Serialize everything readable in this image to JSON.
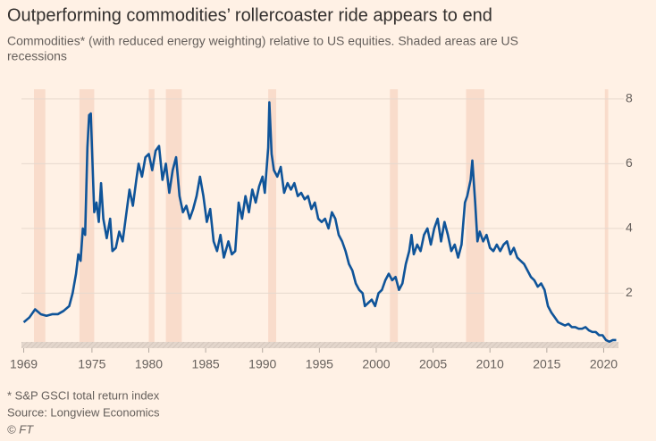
{
  "chart_data": {
    "type": "line",
    "title": "Outperforming commodities’ rollercoaster ride appears to end",
    "subtitle": [
      "Commodities* (with reduced energy weighting) relative to US equities. Shaded areas are US",
      "recessions"
    ],
    "footnotes": [
      "* S&P GSCI total return index",
      "Source: Longview Economics",
      "© FT"
    ],
    "x": [
      1969.0,
      1969.5,
      1970.0,
      1970.5,
      1971.0,
      1971.5,
      1972.0,
      1972.5,
      1973.0,
      1973.3,
      1973.6,
      1973.8,
      1974.0,
      1974.2,
      1974.4,
      1974.6,
      1974.75,
      1974.9,
      1975.0,
      1975.2,
      1975.4,
      1975.6,
      1975.8,
      1976.0,
      1976.3,
      1976.6,
      1976.8,
      1977.1,
      1977.4,
      1977.7,
      1978.0,
      1978.3,
      1978.6,
      1978.9,
      1979.1,
      1979.4,
      1979.7,
      1980.0,
      1980.3,
      1980.6,
      1980.9,
      1981.2,
      1981.5,
      1981.8,
      1982.1,
      1982.4,
      1982.7,
      1983.0,
      1983.3,
      1983.6,
      1983.9,
      1984.2,
      1984.5,
      1984.8,
      1985.1,
      1985.4,
      1985.7,
      1986.0,
      1986.3,
      1986.6,
      1987.0,
      1987.3,
      1987.6,
      1987.9,
      1988.2,
      1988.5,
      1988.8,
      1989.1,
      1989.4,
      1989.7,
      1990.0,
      1990.2,
      1990.5,
      1990.6,
      1990.8,
      1991.0,
      1991.3,
      1991.6,
      1991.9,
      1992.2,
      1992.5,
      1992.8,
      1993.1,
      1993.4,
      1993.7,
      1994.0,
      1994.3,
      1994.6,
      1994.9,
      1995.2,
      1995.5,
      1995.8,
      1996.1,
      1996.4,
      1996.7,
      1997.0,
      1997.3,
      1997.6,
      1997.9,
      1998.2,
      1998.5,
      1998.8,
      1999.0,
      1999.3,
      1999.6,
      1999.9,
      2000.2,
      2000.5,
      2000.8,
      2001.1,
      2001.4,
      2001.7,
      2002.0,
      2002.3,
      2002.6,
      2002.9,
      2003.1,
      2003.3,
      2003.6,
      2003.9,
      2004.2,
      2004.5,
      2004.8,
      2005.1,
      2005.4,
      2005.7,
      2006.0,
      2006.3,
      2006.6,
      2006.9,
      2007.2,
      2007.5,
      2007.8,
      2008.0,
      2008.3,
      2008.45,
      2008.7,
      2008.9,
      2009.1,
      2009.4,
      2009.7,
      2010.0,
      2010.3,
      2010.6,
      2010.9,
      2011.2,
      2011.5,
      2011.8,
      2012.1,
      2012.4,
      2012.7,
      2013.0,
      2013.3,
      2013.6,
      2013.9,
      2014.2,
      2014.5,
      2014.8,
      2015.1,
      2015.4,
      2015.7,
      2016.0,
      2016.3,
      2016.6,
      2016.9,
      2017.2,
      2017.5,
      2017.8,
      2018.1,
      2018.4,
      2018.7,
      2019.0,
      2019.3,
      2019.6,
      2019.9,
      2020.2,
      2020.5,
      2020.8,
      2021.1
    ],
    "series": [
      {
        "color": "#0f5499",
        "values": [
          1.1,
          1.25,
          1.5,
          1.35,
          1.3,
          1.35,
          1.35,
          1.45,
          1.6,
          2.0,
          2.6,
          3.2,
          3.0,
          4.0,
          3.8,
          6.5,
          7.5,
          7.55,
          6.5,
          4.5,
          4.8,
          4.2,
          5.4,
          4.3,
          3.7,
          4.3,
          3.3,
          3.4,
          3.9,
          3.6,
          4.4,
          5.2,
          4.7,
          5.5,
          6.0,
          5.6,
          6.2,
          6.3,
          5.8,
          6.4,
          6.55,
          5.5,
          6.0,
          5.1,
          5.8,
          6.2,
          5.0,
          4.5,
          4.7,
          4.3,
          4.6,
          5.0,
          5.6,
          5.0,
          4.2,
          4.6,
          3.6,
          3.3,
          3.8,
          3.1,
          3.6,
          3.2,
          3.3,
          4.8,
          4.3,
          5.0,
          4.5,
          5.2,
          4.8,
          5.3,
          5.6,
          5.1,
          6.5,
          7.9,
          6.3,
          5.8,
          5.6,
          5.9,
          5.1,
          5.4,
          5.2,
          5.4,
          5.0,
          5.1,
          4.9,
          5.0,
          4.6,
          4.8,
          4.3,
          4.2,
          4.3,
          4.0,
          4.5,
          4.3,
          3.8,
          3.6,
          3.3,
          2.9,
          2.7,
          2.3,
          2.1,
          2.0,
          1.6,
          1.7,
          1.8,
          1.6,
          2.0,
          2.1,
          2.4,
          2.6,
          2.4,
          2.5,
          2.1,
          2.3,
          2.9,
          3.3,
          3.8,
          3.2,
          3.5,
          3.3,
          3.8,
          4.0,
          3.5,
          4.0,
          4.3,
          3.6,
          4.2,
          3.8,
          3.3,
          3.5,
          3.1,
          3.5,
          4.8,
          5.0,
          5.5,
          6.1,
          4.8,
          3.6,
          3.9,
          3.6,
          3.8,
          3.4,
          3.3,
          3.5,
          3.3,
          3.5,
          3.6,
          3.2,
          3.4,
          3.1,
          3.0,
          2.9,
          2.7,
          2.5,
          2.4,
          2.2,
          2.3,
          2.1,
          1.6,
          1.4,
          1.25,
          1.1,
          1.05,
          1.0,
          1.05,
          0.95,
          0.95,
          0.9,
          0.9,
          0.95,
          0.85,
          0.8,
          0.8,
          0.7,
          0.7,
          0.55,
          0.5,
          0.55,
          0.55
        ]
      }
    ],
    "recessions": [
      [
        1969.9,
        1970.9
      ],
      [
        1973.9,
        1975.2
      ],
      [
        1980.0,
        1980.5
      ],
      [
        1981.5,
        1982.9
      ],
      [
        1990.5,
        1991.2
      ],
      [
        2001.2,
        2001.9
      ],
      [
        2007.9,
        2009.5
      ],
      [
        2020.1,
        2020.4
      ]
    ],
    "recession_color": "#f9dccb",
    "xlim": [
      1968.8,
      2021.3
    ],
    "xticks": [
      1969,
      1975,
      1980,
      1985,
      1990,
      1995,
      2000,
      2005,
      2010,
      2015,
      2020
    ],
    "ylim": [
      0.3,
      8.3
    ],
    "yticks": [
      2,
      4,
      6,
      8
    ],
    "grid": true
  }
}
